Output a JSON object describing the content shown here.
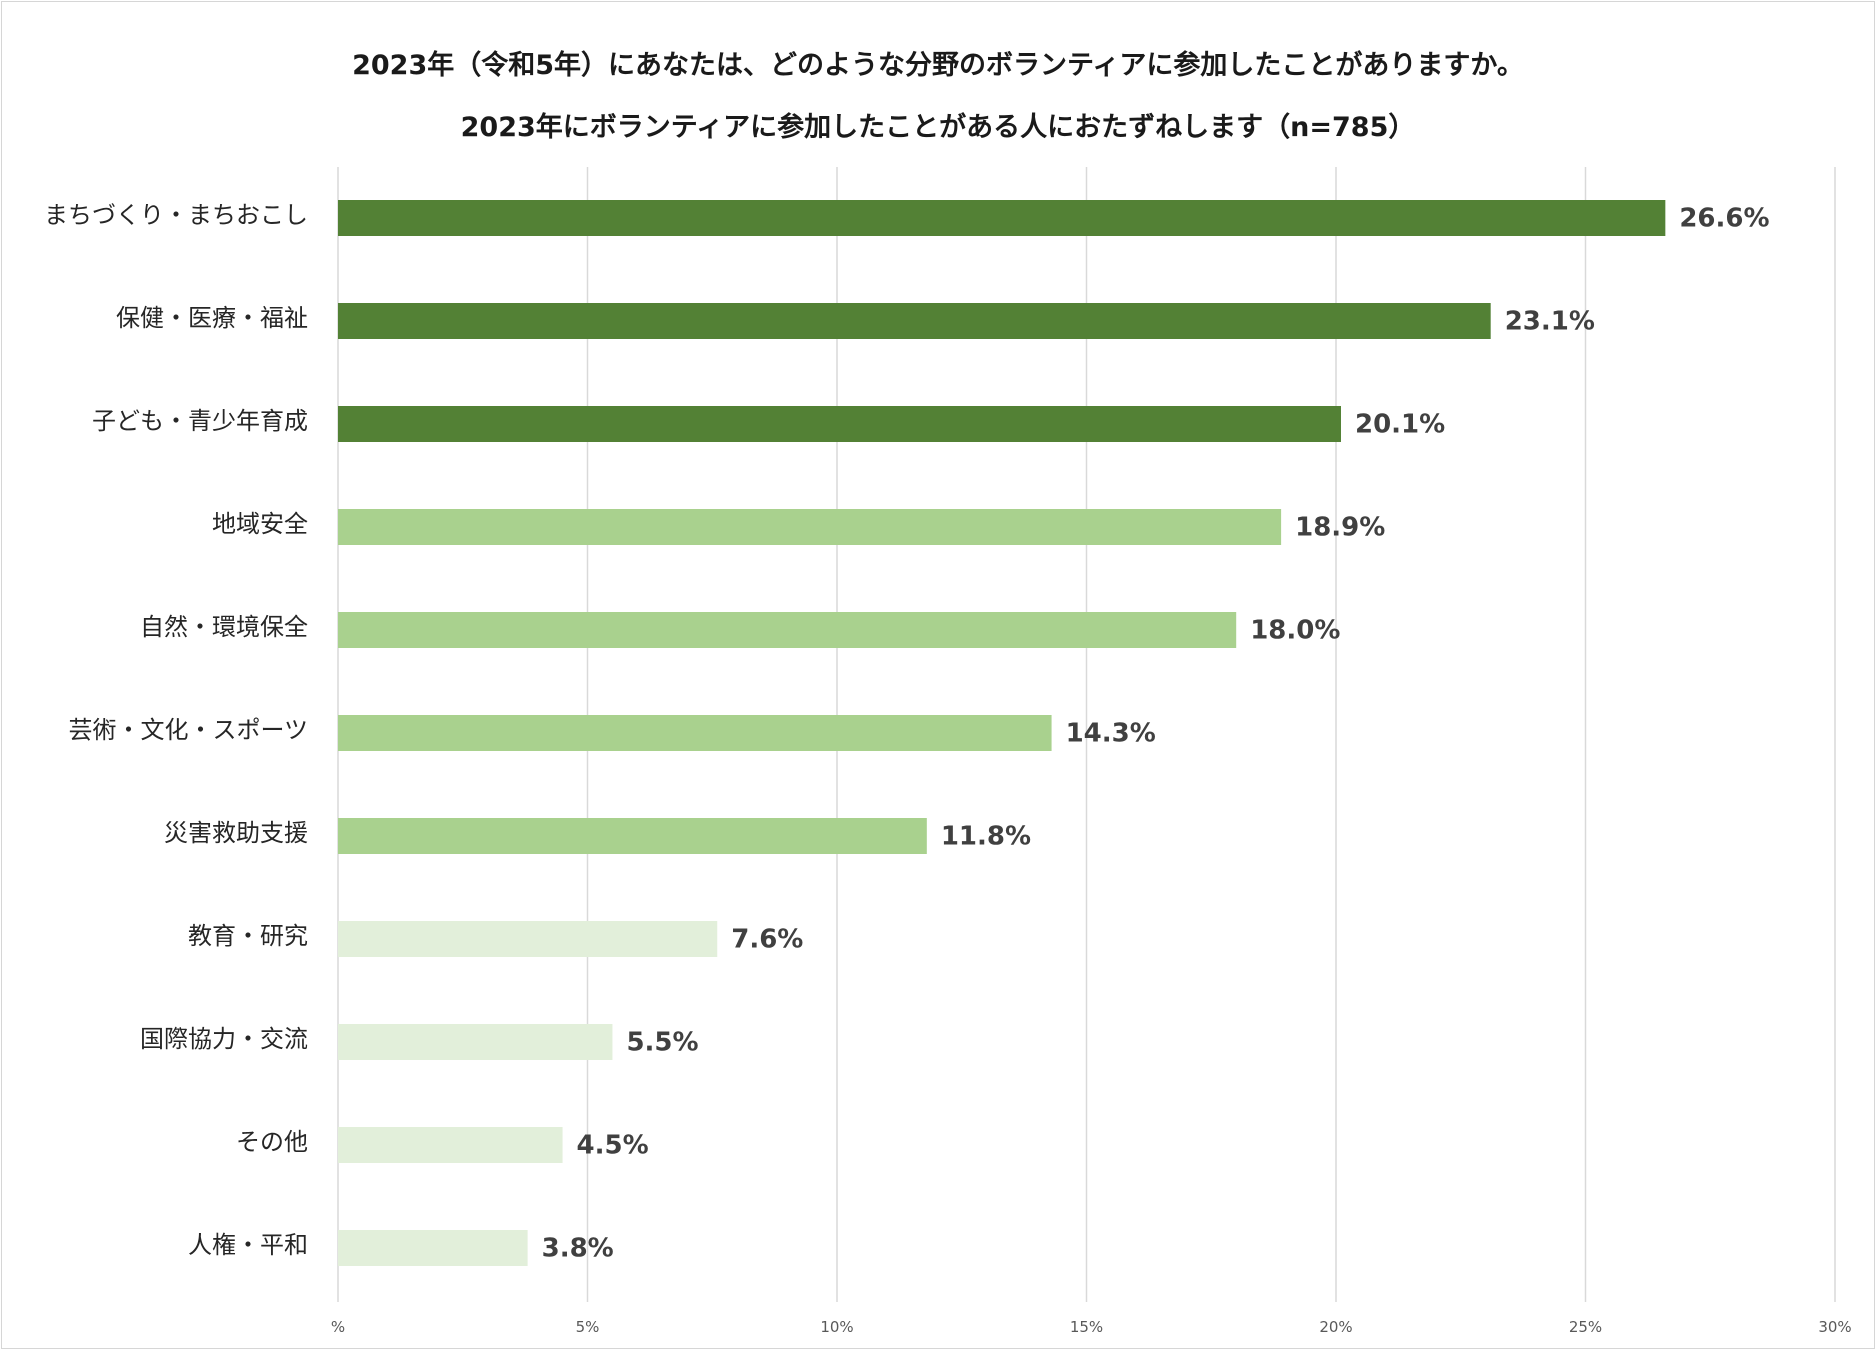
{
  "chart_data": {
    "type": "bar",
    "orientation": "horizontal",
    "title": "2023年（令和5年）にあなたは、どのような分野のボランティアに参加したことがありますか。",
    "subtitle": "2023年にボランティアに参加したことがある人におたずねします（n=785）",
    "categories": [
      "まちづくり・まちおこし",
      "保健・医療・福祉",
      "子ども・青少年育成",
      "地域安全",
      "自然・環境保全",
      "芸術・文化・スポーツ",
      "災害救助支援",
      "教育・研究",
      "国際協力・交流",
      "その他",
      "人権・平和"
    ],
    "values": [
      26.6,
      23.1,
      20.1,
      18.9,
      18.0,
      14.3,
      11.8,
      7.6,
      5.5,
      4.5,
      3.8
    ],
    "value_labels": [
      "26.6%",
      "23.1%",
      "20.1%",
      "18.9%",
      "18.0%",
      "14.3%",
      "11.8%",
      "7.6%",
      "5.5%",
      "4.5%",
      "3.8%"
    ],
    "bar_colors": [
      "#538135",
      "#538135",
      "#538135",
      "#a9d18e",
      "#a9d18e",
      "#a9d18e",
      "#a9d18e",
      "#e2efda",
      "#e2efda",
      "#e2efda",
      "#e2efda"
    ],
    "xlim": [
      0,
      30
    ],
    "x_ticks": [
      0,
      5,
      10,
      15,
      20,
      25,
      30
    ],
    "x_tick_labels": [
      "%",
      "5%",
      "10%",
      "15%",
      "20%",
      "25%",
      "30%"
    ],
    "xlabel": "",
    "ylabel": "",
    "grid": true,
    "legend": "none"
  }
}
